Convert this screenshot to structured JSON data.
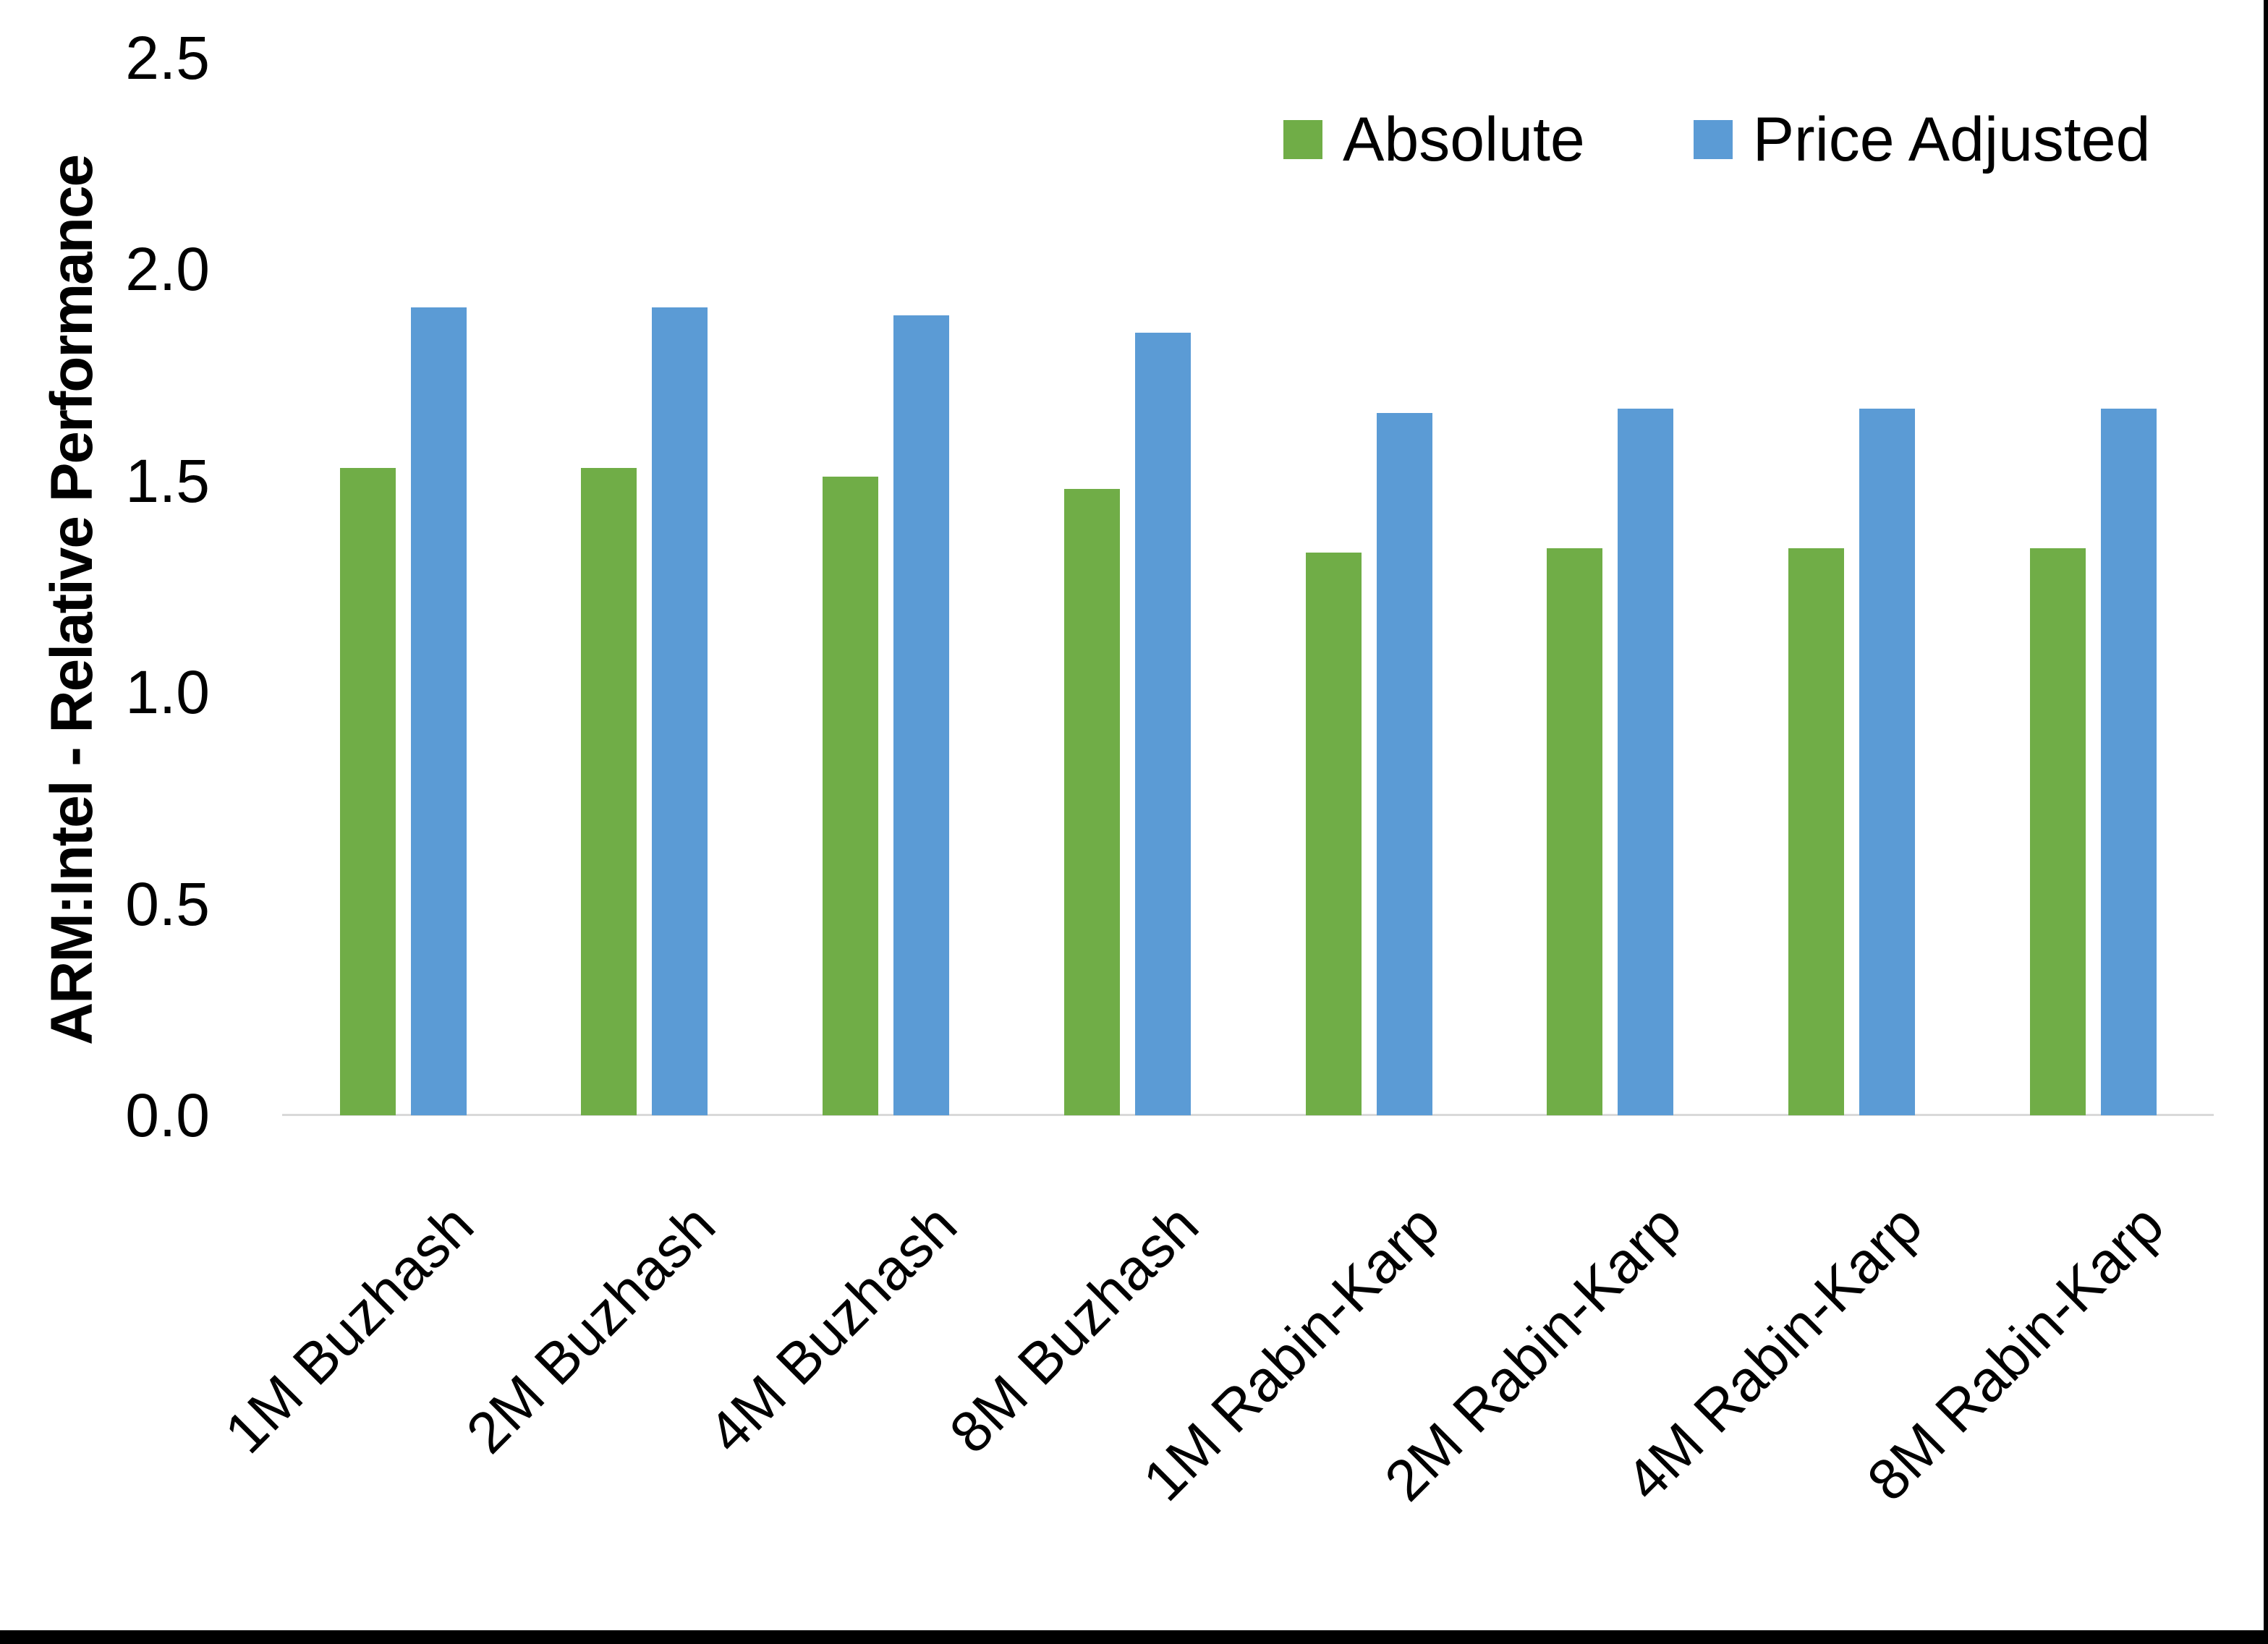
{
  "chart_data": {
    "type": "bar",
    "title": "",
    "xlabel": "",
    "ylabel": "ARM:Intel - Relative Performance",
    "categories": [
      "1M Buzhash",
      "2M Buzhash",
      "4M Buzhash",
      "8M Buzhash",
      "1M Rabin-Karp",
      "2M Rabin-Karp",
      "4M Rabin-Karp",
      "8M Rabin-Karp"
    ],
    "series": [
      {
        "name": "Absolute",
        "color": "#70AD47",
        "values": [
          1.53,
          1.53,
          1.51,
          1.48,
          1.33,
          1.34,
          1.34,
          1.34
        ]
      },
      {
        "name": "Price Adjusted",
        "color": "#5B9BD5",
        "values": [
          1.91,
          1.91,
          1.89,
          1.85,
          1.66,
          1.67,
          1.67,
          1.67
        ]
      }
    ],
    "ylim": [
      0,
      2.5
    ],
    "yticks": [
      "0.0",
      "0.5",
      "1.0",
      "1.5",
      "2.0",
      "2.5"
    ],
    "grid": false,
    "legend_position": "top-right",
    "axis_line_color": "#D9D9D9",
    "text_color": "#000000",
    "background": "#FFFFFF",
    "frame_border_color": "#000000"
  }
}
